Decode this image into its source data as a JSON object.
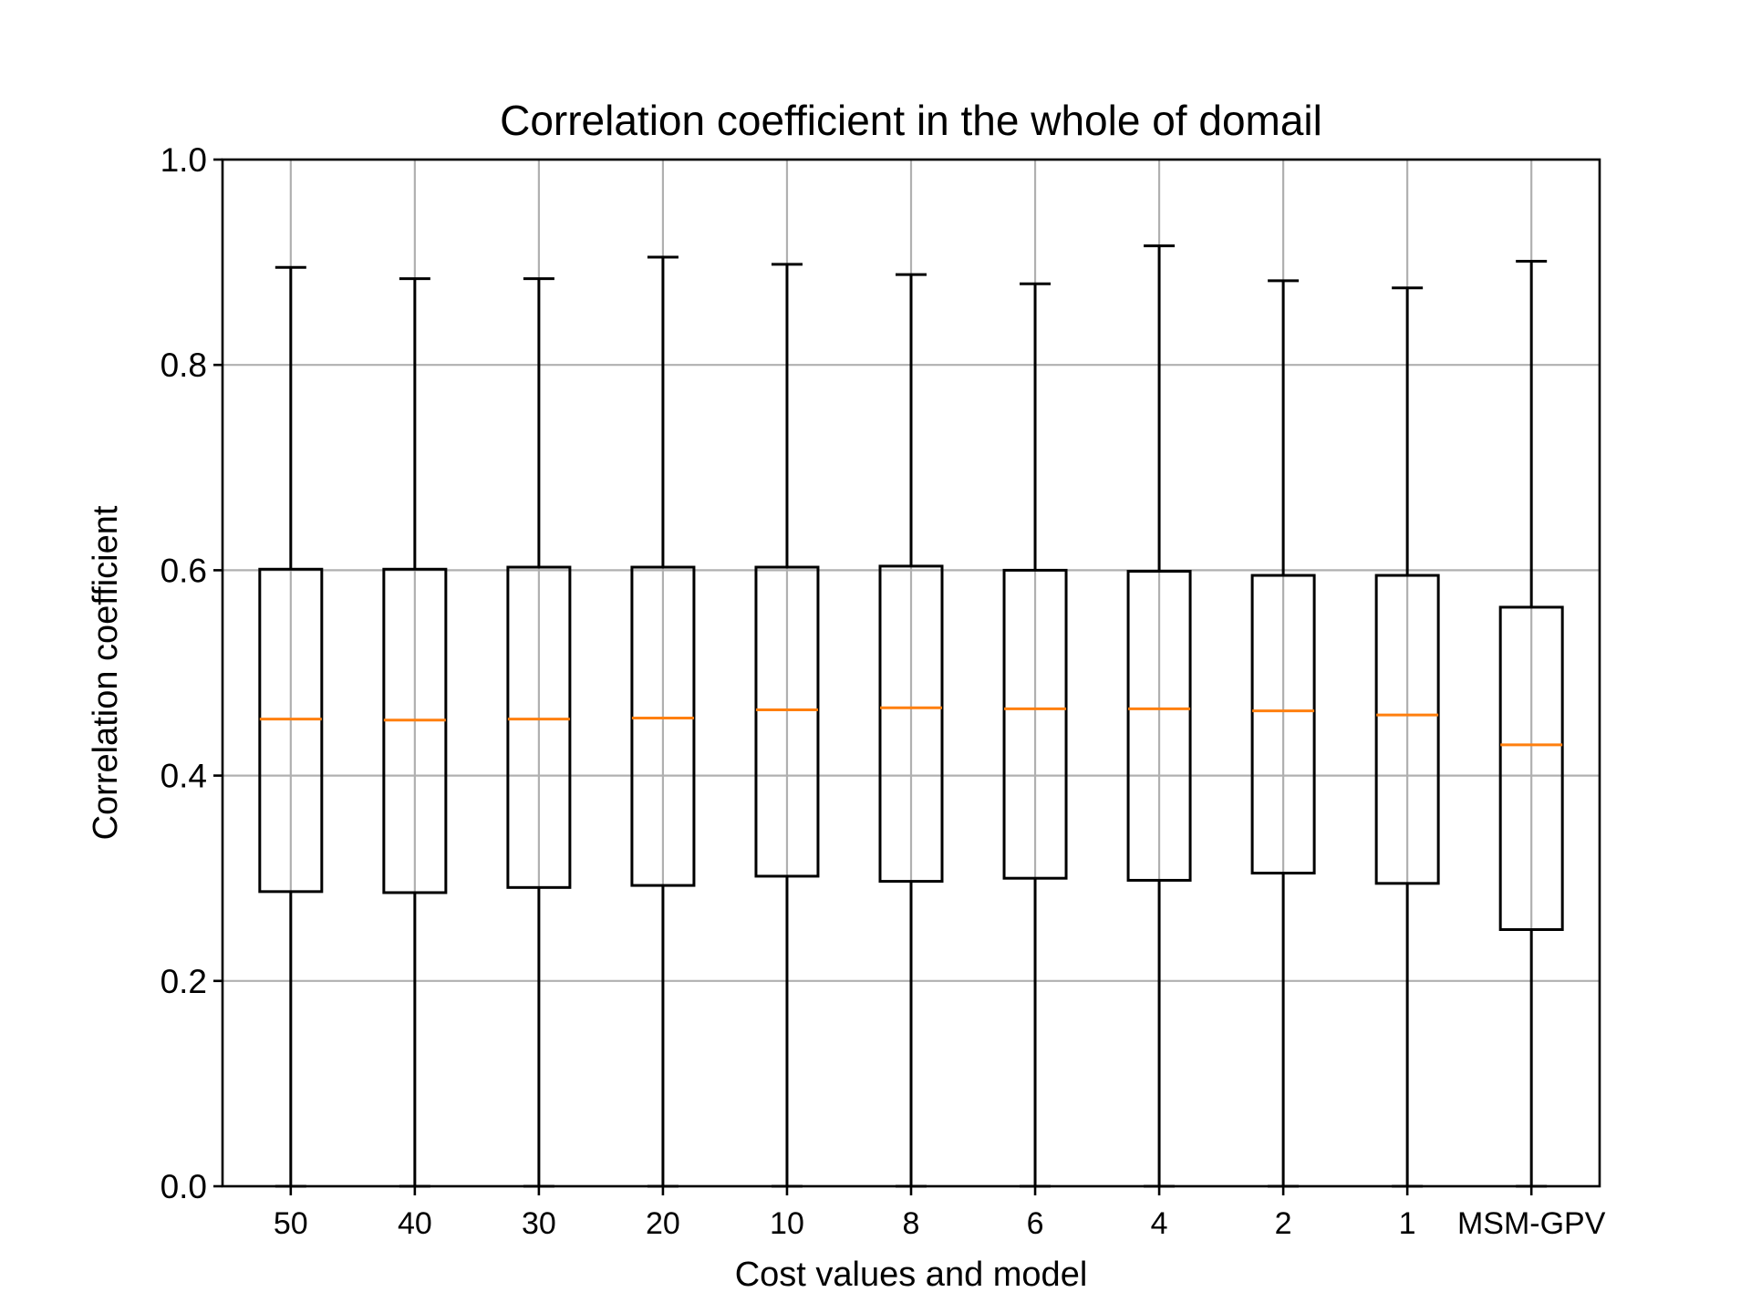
{
  "chart_data": {
    "type": "box",
    "title": "Correlation coefficient in the whole of domail",
    "xlabel": "Cost values and model",
    "ylabel": "Correlation coefficient",
    "ylim": [
      0.0,
      1.0
    ],
    "yticks": [
      "0.0",
      "0.2",
      "0.4",
      "0.6",
      "0.8",
      "1.0"
    ],
    "grid": true,
    "categories": [
      "50",
      "40",
      "30",
      "20",
      "10",
      "8",
      "6",
      "4",
      "2",
      "1",
      "MSM-GPV"
    ],
    "boxes": [
      {
        "whisker_low": 0.0,
        "q1": 0.287,
        "median": 0.455,
        "q3": 0.601,
        "whisker_high": 0.895
      },
      {
        "whisker_low": 0.0,
        "q1": 0.286,
        "median": 0.454,
        "q3": 0.601,
        "whisker_high": 0.884
      },
      {
        "whisker_low": 0.0,
        "q1": 0.291,
        "median": 0.455,
        "q3": 0.603,
        "whisker_high": 0.884
      },
      {
        "whisker_low": 0.0,
        "q1": 0.293,
        "median": 0.456,
        "q3": 0.603,
        "whisker_high": 0.905
      },
      {
        "whisker_low": 0.0,
        "q1": 0.302,
        "median": 0.464,
        "q3": 0.603,
        "whisker_high": 0.898
      },
      {
        "whisker_low": 0.0,
        "q1": 0.297,
        "median": 0.466,
        "q3": 0.604,
        "whisker_high": 0.888
      },
      {
        "whisker_low": 0.0,
        "q1": 0.3,
        "median": 0.465,
        "q3": 0.6,
        "whisker_high": 0.879
      },
      {
        "whisker_low": 0.0,
        "q1": 0.298,
        "median": 0.465,
        "q3": 0.599,
        "whisker_high": 0.916
      },
      {
        "whisker_low": 0.0,
        "q1": 0.305,
        "median": 0.463,
        "q3": 0.595,
        "whisker_high": 0.882
      },
      {
        "whisker_low": 0.0,
        "q1": 0.295,
        "median": 0.459,
        "q3": 0.595,
        "whisker_high": 0.875
      },
      {
        "whisker_low": 0.0,
        "q1": 0.25,
        "median": 0.43,
        "q3": 0.564,
        "whisker_high": 0.901
      }
    ],
    "colors": {
      "box": "#000000",
      "median": "#ff7f0e",
      "grid": "#b0b0b0",
      "axes": "#000000"
    }
  }
}
